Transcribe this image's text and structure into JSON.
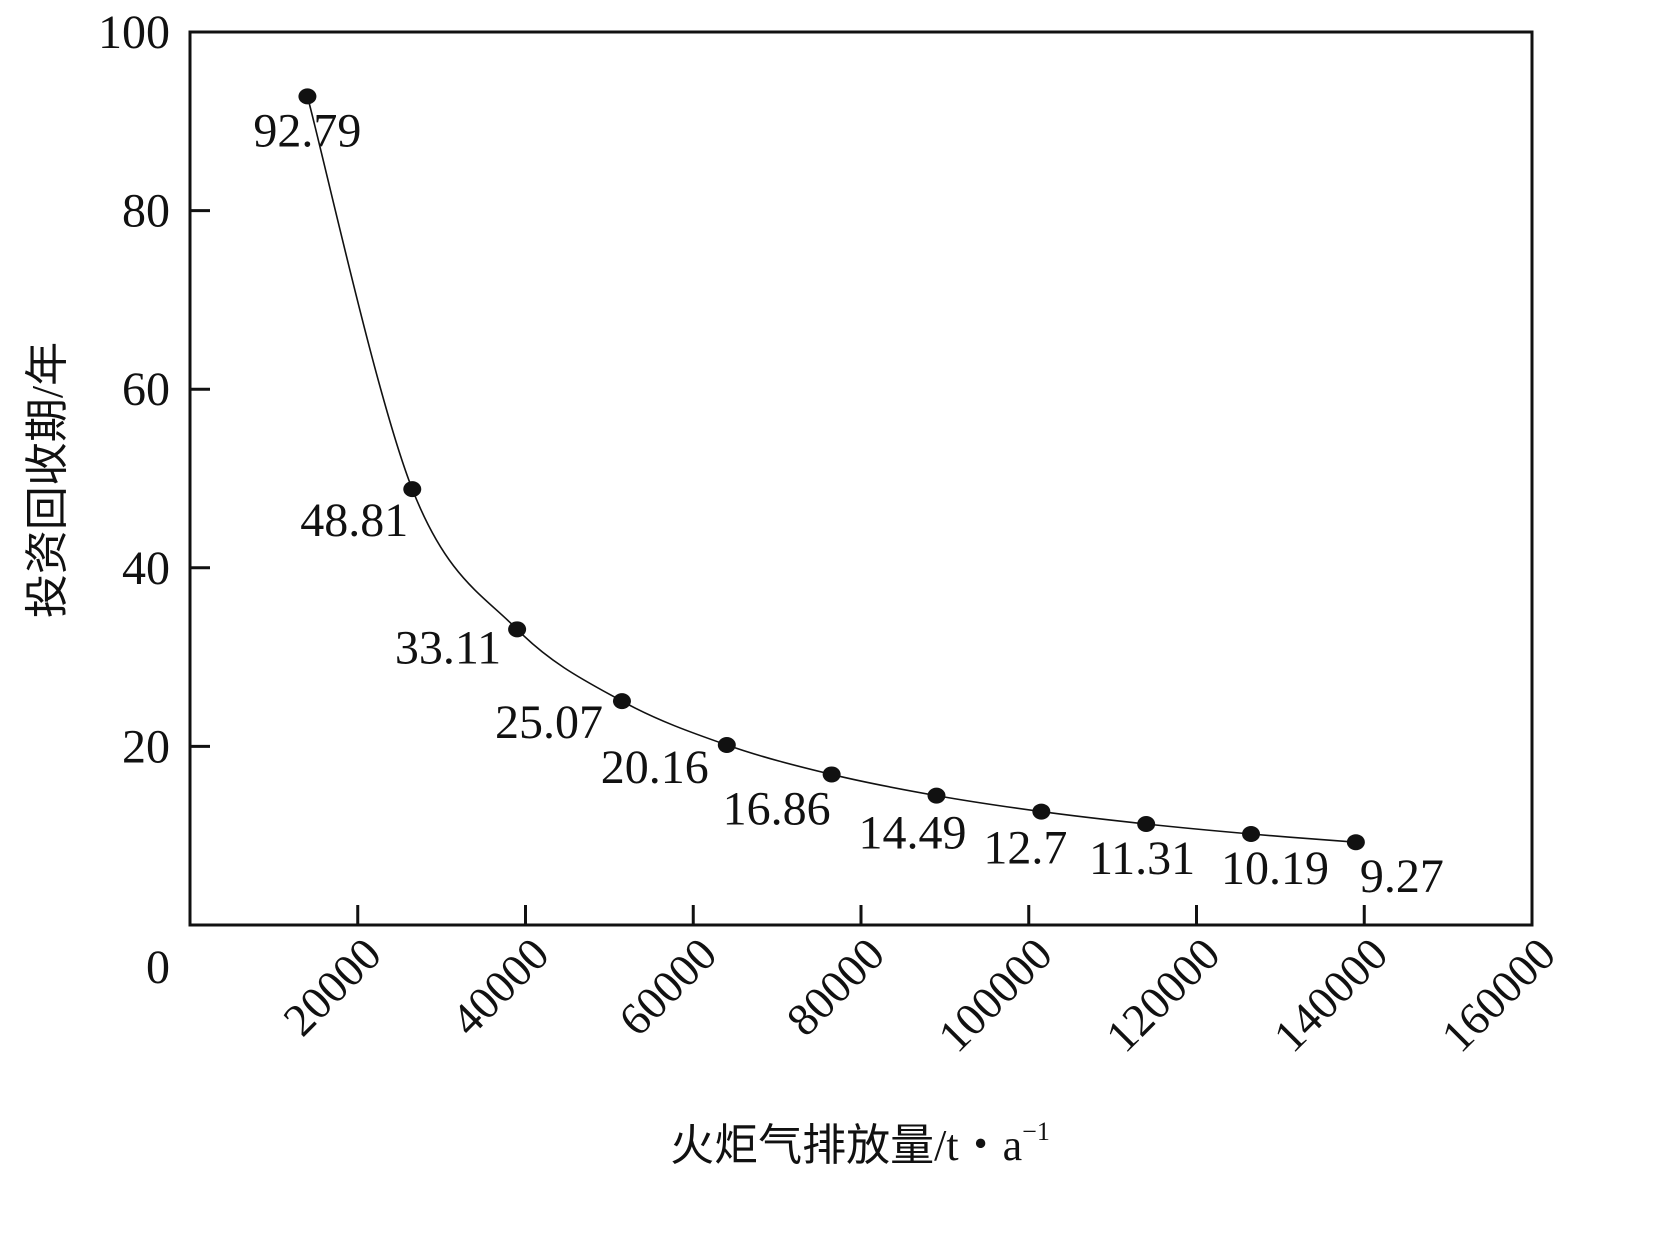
{
  "chart_data": {
    "type": "line",
    "title": "",
    "xlabel": "火炬气排放量/t・a",
    "xlabel_superscript": "−1",
    "ylabel": "投资回收期/年",
    "xlim": [
      0,
      160000
    ],
    "ylim": [
      0,
      100
    ],
    "x_ticks": [
      "20000",
      "40000",
      "60000",
      "80000",
      "100000",
      "120000",
      "140000",
      "160000"
    ],
    "x_tick_values": [
      20000,
      40000,
      60000,
      80000,
      100000,
      120000,
      140000,
      160000
    ],
    "y_ticks": [
      "0",
      "20",
      "40",
      "60",
      "80",
      "100"
    ],
    "y_tick_values": [
      0,
      20,
      40,
      60,
      80,
      100
    ],
    "grid": false,
    "legend": "none",
    "series": [
      {
        "x": [
          14000,
          26500,
          39000,
          51500,
          64000,
          76500,
          89000,
          101500,
          114000,
          126500,
          139000
        ],
        "y": [
          92.79,
          48.81,
          33.11,
          25.07,
          20.16,
          16.86,
          14.49,
          12.7,
          11.31,
          10.19,
          9.27
        ],
        "labels": [
          "92.79",
          "48.81",
          "33.11",
          "25.07",
          "20.16",
          "16.86",
          "14.49",
          "12.7",
          "11.31",
          "10.19",
          "9.27"
        ],
        "color": "#111111"
      }
    ]
  }
}
